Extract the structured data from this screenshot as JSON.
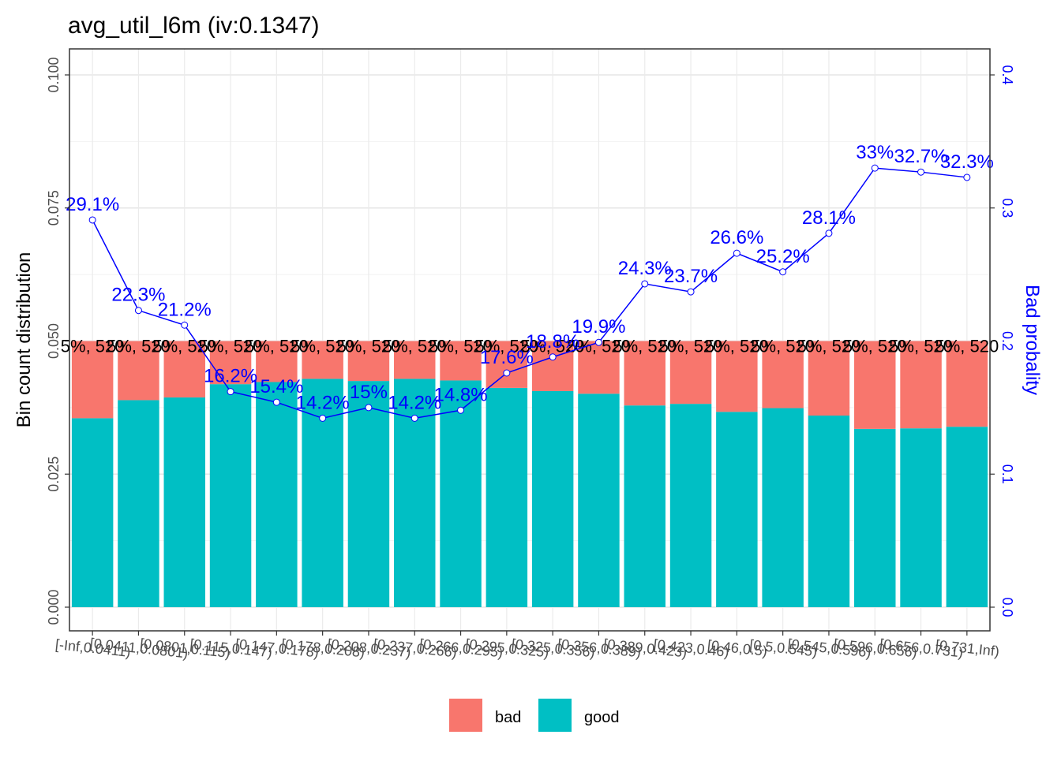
{
  "chart_data": {
    "type": "bar",
    "title": "avg_util_l6m  (iv:0.1347)",
    "ylabel": "Bin count distribution",
    "y2label": "Bad probality",
    "ylim": [
      0,
      0.105
    ],
    "y2lim": [
      0,
      0.42
    ],
    "yticks": [
      "0.000",
      "0.025",
      "0.050",
      "0.075",
      "0.100"
    ],
    "y2ticks": [
      "0.0",
      "0.1",
      "0.2",
      "0.3",
      "0.4"
    ],
    "stacked": true,
    "grid": true,
    "legend": {
      "position": "bottom",
      "entries": [
        {
          "name": "bad",
          "color": "#f8766d"
        },
        {
          "name": "good",
          "color": "#00bfc4"
        }
      ]
    },
    "categories": [
      "[-Inf,0.0411)",
      "[0.0411,0.0801)",
      "[0.0801,0.115)",
      "[0.115,0.147)",
      "[0.147,0.178)",
      "[0.178,0.208)",
      "[0.208,0.237)",
      "[0.237,0.266)",
      "[0.266,0.295)",
      "[0.295,0.325)",
      "[0.325,0.356)",
      "[0.356,0.389)",
      "[0.389,0.423)",
      "[0.423,0.46)",
      "[0.46,0.5)",
      "[0.5,0.545)",
      "[0.545,0.596)",
      "[0.596,0.656)",
      "[0.656,0.731)",
      "[0.731,Inf)"
    ],
    "series": [
      {
        "name": "good",
        "color": "#00bfc4",
        "values": [
          0.0355,
          0.0389,
          0.0394,
          0.0419,
          0.0423,
          0.0429,
          0.0425,
          0.0429,
          0.0426,
          0.0412,
          0.0406,
          0.0401,
          0.0379,
          0.0382,
          0.0367,
          0.0374,
          0.036,
          0.0335,
          0.0336,
          0.0339
        ]
      },
      {
        "name": "bad",
        "color": "#f8766d",
        "values": [
          0.0145,
          0.0111,
          0.0106,
          0.0081,
          0.0077,
          0.0071,
          0.0075,
          0.0071,
          0.0074,
          0.0088,
          0.0094,
          0.0099,
          0.0121,
          0.0118,
          0.0133,
          0.0126,
          0.014,
          0.0165,
          0.0164,
          0.0161
        ]
      }
    ],
    "bar_labels": [
      "5%, 520",
      "5%, 520",
      "5%, 520",
      "5%, 520",
      "5%, 520",
      "5%, 520",
      "5%, 520",
      "5%, 520",
      "5%, 520",
      "5%, 520",
      "5%, 520",
      "5%, 520",
      "5%, 520",
      "5%, 520",
      "5%, 520",
      "5%, 520",
      "5%, 520",
      "5%, 520",
      "5%, 520",
      "5%, 520"
    ],
    "bad_probability": {
      "color": "#0000ff",
      "values": [
        0.291,
        0.223,
        0.212,
        0.162,
        0.154,
        0.142,
        0.15,
        0.142,
        0.148,
        0.176,
        0.188,
        0.199,
        0.243,
        0.237,
        0.266,
        0.252,
        0.281,
        0.33,
        0.327,
        0.323
      ],
      "labels": [
        "29.1%",
        "22.3%",
        "21.2%",
        "16.2%",
        "15.4%",
        "14.2%",
        "15%",
        "14.2%",
        "14.8%",
        "17.6%",
        "18.8%",
        "19.9%",
        "24.3%",
        "23.7%",
        "26.6%",
        "25.2%",
        "28.1%",
        "33%",
        "32.7%",
        "32.3%"
      ]
    }
  }
}
